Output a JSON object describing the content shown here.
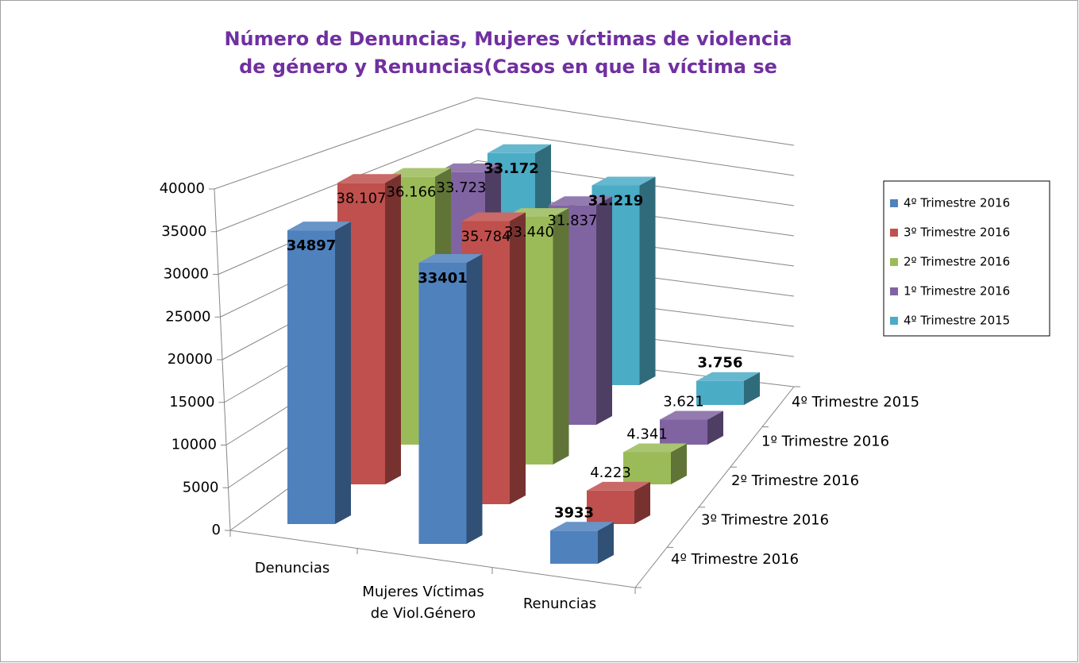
{
  "chart_data": {
    "type": "bar3d",
    "title": [
      "Número  de  Denuncias, Mujeres víctimas de violencia",
      "de género y Renuncias(Casos en que la  víctima se"
    ],
    "categories": [
      "Denuncias",
      "Mujeres Víctimas de Viol.Género",
      "Renuncias"
    ],
    "ylim": [
      0,
      40000
    ],
    "yticks": [
      0,
      5000,
      10000,
      15000,
      20000,
      25000,
      30000,
      35000,
      40000
    ],
    "grid": true,
    "legend": "right",
    "series": [
      {
        "name": "4º Trimestre 2016",
        "color": "#4f81bd",
        "values": [
          34897,
          33401,
          3933
        ],
        "label_bold": true
      },
      {
        "name": "3º Trimestre 2016",
        "color": "#c0504d",
        "values": [
          38107,
          35784,
          4223
        ],
        "value_labels": [
          "38.107",
          "35.784",
          "4.223"
        ]
      },
      {
        "name": "2º Trimestre 2016",
        "color": "#9bbb59",
        "values": [
          36166,
          33440,
          4341
        ],
        "value_labels": [
          "36.166",
          "33.440",
          "4.341"
        ]
      },
      {
        "name": "1º Trimestre 2016",
        "color": "#8064a2",
        "values": [
          33723,
          31837,
          3621
        ],
        "value_labels": [
          "33.723",
          "31.837",
          "3.621"
        ]
      },
      {
        "name": "4º Trimestre 2015",
        "color": "#4bacc6",
        "values": [
          33172,
          31219,
          3756
        ],
        "value_labels": [
          "33.172",
          "31.219",
          "3.756"
        ],
        "label_bold": true
      }
    ]
  }
}
